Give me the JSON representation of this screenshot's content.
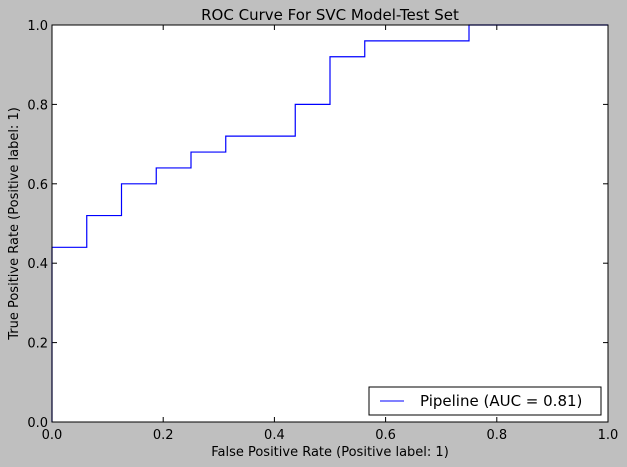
{
  "chart_data": {
    "type": "line",
    "title": "ROC Curve For SVC Model-Test Set",
    "xlabel": "False Positive Rate (Positive label: 1)",
    "ylabel": "True Positive Rate (Positive label: 1)",
    "xlim": [
      0.0,
      1.0
    ],
    "ylim": [
      0.0,
      1.0
    ],
    "x_ticks": [
      "0.0",
      "0.2",
      "0.4",
      "0.6",
      "0.8",
      "1.0"
    ],
    "y_ticks": [
      "0.0",
      "0.2",
      "0.4",
      "0.6",
      "0.8",
      "1.0"
    ],
    "grid": false,
    "legend_position": "lower-right",
    "series": [
      {
        "name": "Pipeline (AUC = 0.81)",
        "color": "#0000ff",
        "x": [
          0.0,
          0.0,
          0.0625,
          0.0625,
          0.125,
          0.125,
          0.1875,
          0.1875,
          0.25,
          0.25,
          0.3125,
          0.3125,
          0.4375,
          0.4375,
          0.5,
          0.5,
          0.5625,
          0.5625,
          0.75,
          0.75,
          1.0
        ],
        "y": [
          0.0,
          0.44,
          0.44,
          0.52,
          0.52,
          0.6,
          0.6,
          0.64,
          0.64,
          0.68,
          0.68,
          0.72,
          0.72,
          0.8,
          0.8,
          0.92,
          0.92,
          0.96,
          0.96,
          1.0,
          1.0
        ]
      }
    ]
  }
}
